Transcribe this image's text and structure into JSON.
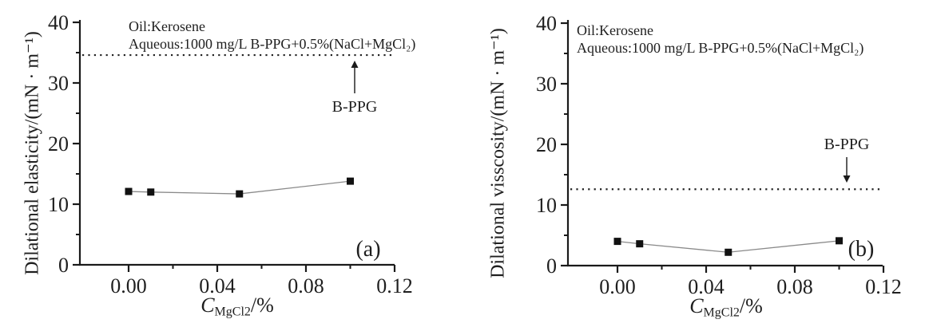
{
  "page": {
    "background_color": "#ffffff",
    "text_color": "#1f1f1f",
    "marker_color": "#111111",
    "series_line_color": "#8a8a8a",
    "reference_line_color": "#222222"
  },
  "chart_data": [
    {
      "type": "line",
      "panel_label": "(a)",
      "ylabel": "Dilational elasticity/(mN · m⁻¹)",
      "xlabel": {
        "symbol": "C",
        "subscript": "MgCl2",
        "suffix": "/%"
      },
      "annotations": [
        "Oil:Kerosene",
        "Aqueous:1000 mg/L B-PPG+0.5%(NaCl+MgCl₂)"
      ],
      "x": [
        0.0,
        0.01,
        0.05,
        0.1
      ],
      "values": [
        12.1,
        12.0,
        11.7,
        13.8
      ],
      "marker": "filled-square",
      "xlim": [
        -0.023,
        0.12
      ],
      "ylim": [
        0,
        40
      ],
      "x_major_ticks": [
        0.0,
        0.04,
        0.08,
        0.12
      ],
      "x_tick_labels": [
        "0.00",
        "0.04",
        "0.08",
        "0.12"
      ],
      "x_minor_ticks": [
        0.02,
        0.06,
        0.1
      ],
      "y_major_ticks": [
        0,
        10,
        20,
        30,
        40
      ],
      "y_tick_labels": [
        "0",
        "10",
        "20",
        "30",
        "40"
      ],
      "y_minor_ticks": [
        5,
        15,
        25,
        35
      ],
      "grid": false,
      "legend": "none",
      "reference_line": {
        "value": 34.6,
        "style": "dotted",
        "label": "B-PPG",
        "arrow": "up"
      }
    },
    {
      "type": "line",
      "panel_label": "(b)",
      "ylabel": "Dilational visscosity/(mN · m⁻¹)",
      "xlabel": {
        "symbol": "C",
        "subscript": "MgCl2",
        "suffix": "/%"
      },
      "annotations": [
        "Oil:Kerosene",
        "Aqueous:1000 mg/L B-PPG+0.5%(NaCl+MgCl₂)"
      ],
      "x": [
        0.0,
        0.01,
        0.05,
        0.1
      ],
      "values": [
        4.0,
        3.6,
        2.2,
        4.1
      ],
      "marker": "filled-square",
      "xlim": [
        -0.022,
        0.12
      ],
      "ylim": [
        0,
        40
      ],
      "x_major_ticks": [
        0.0,
        0.04,
        0.08,
        0.12
      ],
      "x_tick_labels": [
        "0.00",
        "0.04",
        "0.08",
        "0.12"
      ],
      "x_minor_ticks": [
        0.02,
        0.06,
        0.1
      ],
      "y_major_ticks": [
        0,
        10,
        20,
        30,
        40
      ],
      "y_tick_labels": [
        "0",
        "10",
        "20",
        "30",
        "40"
      ],
      "y_minor_ticks": [
        5,
        15,
        25,
        35
      ],
      "grid": false,
      "legend": "none",
      "reference_line": {
        "value": 12.6,
        "style": "dotted",
        "label": "B-PPG",
        "arrow": "down"
      }
    }
  ]
}
